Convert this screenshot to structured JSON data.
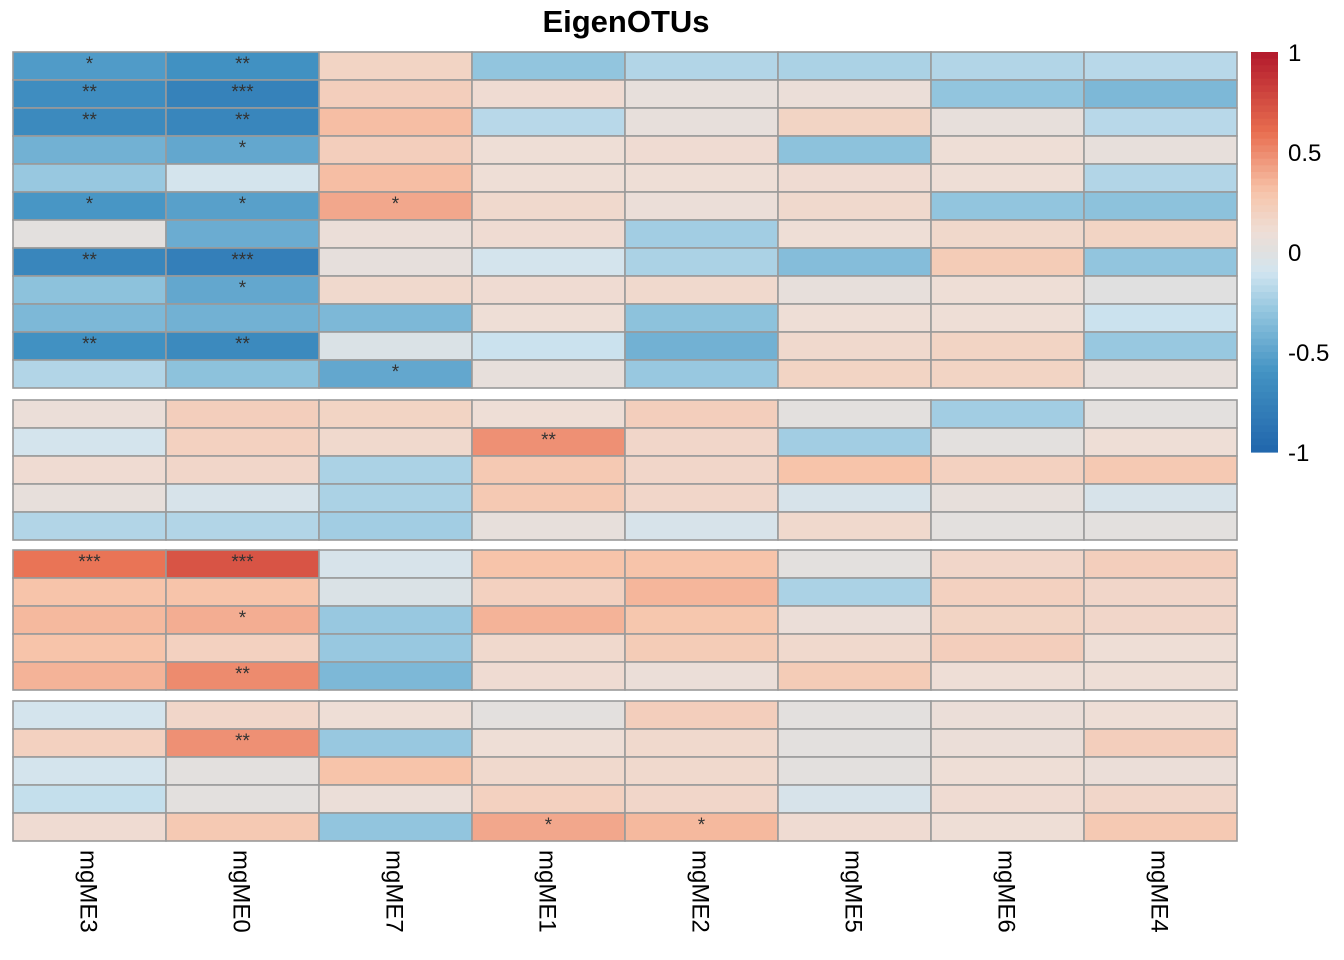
{
  "chart_data": {
    "type": "heatmap",
    "title": "EigenOTUs",
    "columns": [
      "mgME3",
      "mgME0",
      "mgME7",
      "mgME1",
      "mgME2",
      "mgME5",
      "mgME6",
      "mgME4"
    ],
    "row_groups": [
      {
        "values": [
          [
            -0.55,
            -0.62,
            0.18,
            -0.3,
            -0.2,
            -0.22,
            -0.2,
            -0.18
          ],
          [
            -0.65,
            -0.75,
            0.22,
            0.12,
            0.05,
            0.08,
            -0.3,
            -0.38
          ],
          [
            -0.68,
            -0.72,
            0.32,
            -0.18,
            0.05,
            0.18,
            0.05,
            -0.18
          ],
          [
            -0.42,
            -0.48,
            0.22,
            0.1,
            0.12,
            -0.32,
            0.1,
            0.05
          ],
          [
            -0.28,
            -0.08,
            0.32,
            0.1,
            0.1,
            0.12,
            0.1,
            -0.2
          ],
          [
            -0.58,
            -0.52,
            0.4,
            0.14,
            0.08,
            0.14,
            -0.3,
            -0.32
          ],
          [
            0.02,
            -0.45,
            0.08,
            0.12,
            -0.25,
            0.1,
            0.15,
            0.18
          ],
          [
            -0.72,
            -0.78,
            0.04,
            -0.08,
            -0.22,
            -0.35,
            0.24,
            -0.3
          ],
          [
            -0.32,
            -0.48,
            0.14,
            0.12,
            0.14,
            0.05,
            0.1,
            0.0
          ],
          [
            -0.38,
            -0.42,
            -0.38,
            0.1,
            -0.32,
            0.1,
            0.1,
            -0.12
          ],
          [
            -0.62,
            -0.68,
            -0.04,
            -0.12,
            -0.42,
            0.14,
            0.18,
            -0.28
          ],
          [
            -0.2,
            -0.32,
            -0.48,
            0.05,
            -0.28,
            0.18,
            0.18,
            0.05
          ]
        ],
        "stars": [
          [
            "*",
            "**",
            "",
            "",
            "",
            "",
            "",
            ""
          ],
          [
            "**",
            "***",
            "",
            "",
            "",
            "",
            "",
            ""
          ],
          [
            "**",
            "**",
            "",
            "",
            "",
            "",
            "",
            ""
          ],
          [
            "",
            "*",
            "",
            "",
            "",
            "",
            "",
            ""
          ],
          [
            "",
            "",
            "",
            "",
            "",
            "",
            "",
            ""
          ],
          [
            "*",
            "*",
            "*",
            "",
            "",
            "",
            "",
            ""
          ],
          [
            "",
            "",
            "",
            "",
            "",
            "",
            "",
            ""
          ],
          [
            "**",
            "***",
            "",
            "",
            "",
            "",
            "",
            ""
          ],
          [
            "",
            "*",
            "",
            "",
            "",
            "",
            "",
            ""
          ],
          [
            "",
            "",
            "",
            "",
            "",
            "",
            "",
            ""
          ],
          [
            "**",
            "**",
            "",
            "",
            "",
            "",
            "",
            ""
          ],
          [
            "",
            "",
            "*",
            "",
            "",
            "",
            "",
            ""
          ]
        ]
      },
      {
        "values": [
          [
            0.08,
            0.22,
            0.18,
            0.1,
            0.22,
            0.02,
            -0.25,
            0.02
          ],
          [
            -0.08,
            0.2,
            0.14,
            0.48,
            0.16,
            -0.25,
            0.02,
            0.1
          ],
          [
            0.12,
            0.16,
            -0.22,
            0.26,
            0.16,
            0.3,
            0.2,
            0.26
          ],
          [
            0.05,
            -0.06,
            -0.22,
            0.26,
            0.16,
            -0.06,
            0.05,
            -0.06
          ],
          [
            -0.2,
            -0.2,
            -0.25,
            0.05,
            -0.06,
            0.14,
            0.02,
            0.02
          ]
        ],
        "stars": [
          [
            "",
            "",
            "",
            "",
            "",
            "",
            "",
            ""
          ],
          [
            "",
            "",
            "",
            "**",
            "",
            "",
            "",
            ""
          ],
          [
            "",
            "",
            "",
            "",
            "",
            "",
            "",
            ""
          ],
          [
            "",
            "",
            "",
            "",
            "",
            "",
            "",
            ""
          ],
          [
            "",
            "",
            "",
            "",
            "",
            "",
            "",
            ""
          ]
        ]
      },
      {
        "values": [
          [
            0.58,
            0.72,
            -0.06,
            0.3,
            0.3,
            0.02,
            0.16,
            0.22
          ],
          [
            0.3,
            0.3,
            -0.04,
            0.2,
            0.35,
            -0.22,
            0.2,
            0.16
          ],
          [
            0.34,
            0.38,
            -0.28,
            0.36,
            0.28,
            0.08,
            0.18,
            0.16
          ],
          [
            0.3,
            0.2,
            -0.28,
            0.14,
            0.24,
            0.14,
            0.22,
            0.1
          ],
          [
            0.36,
            0.5,
            -0.38,
            0.12,
            0.08,
            0.24,
            0.1,
            0.1
          ]
        ],
        "stars": [
          [
            "***",
            "***",
            "",
            "",
            "",
            "",
            "",
            ""
          ],
          [
            "",
            "",
            "",
            "",
            "",
            "",
            "",
            ""
          ],
          [
            "",
            "*",
            "",
            "",
            "",
            "",
            "",
            ""
          ],
          [
            "",
            "",
            "",
            "",
            "",
            "",
            "",
            ""
          ],
          [
            "",
            "**",
            "",
            "",
            "",
            "",
            "",
            ""
          ]
        ]
      },
      {
        "values": [
          [
            -0.08,
            0.16,
            0.1,
            0.02,
            0.22,
            0.02,
            0.08,
            0.1
          ],
          [
            0.2,
            0.48,
            -0.28,
            0.1,
            0.14,
            0.02,
            0.08,
            0.22
          ],
          [
            -0.08,
            0.02,
            0.3,
            0.14,
            0.14,
            0.02,
            0.1,
            0.08
          ],
          [
            -0.14,
            0.02,
            0.08,
            0.2,
            0.16,
            -0.06,
            0.12,
            0.16
          ],
          [
            0.12,
            0.26,
            -0.3,
            0.4,
            0.34,
            0.12,
            0.1,
            0.26
          ]
        ],
        "stars": [
          [
            "",
            "",
            "",
            "",
            "",
            "",
            "",
            ""
          ],
          [
            "",
            "**",
            "",
            "",
            "",
            "",
            "",
            ""
          ],
          [
            "",
            "",
            "",
            "",
            "",
            "",
            "",
            ""
          ],
          [
            "",
            "",
            "",
            "",
            "",
            "",
            "",
            ""
          ],
          [
            "",
            "",
            "",
            "*",
            "*",
            "",
            "",
            ""
          ]
        ]
      }
    ],
    "legend": {
      "min": -1,
      "max": 1,
      "ticks": [
        "1",
        "0.5",
        "0",
        "-0.5",
        "-1"
      ],
      "tick_values": [
        1,
        0.5,
        0,
        -0.5,
        -1
      ],
      "placement": "right"
    },
    "color_scale": {
      "low": "#2166ac",
      "mid": "#e0e0e0",
      "high": "#b2182b"
    }
  }
}
